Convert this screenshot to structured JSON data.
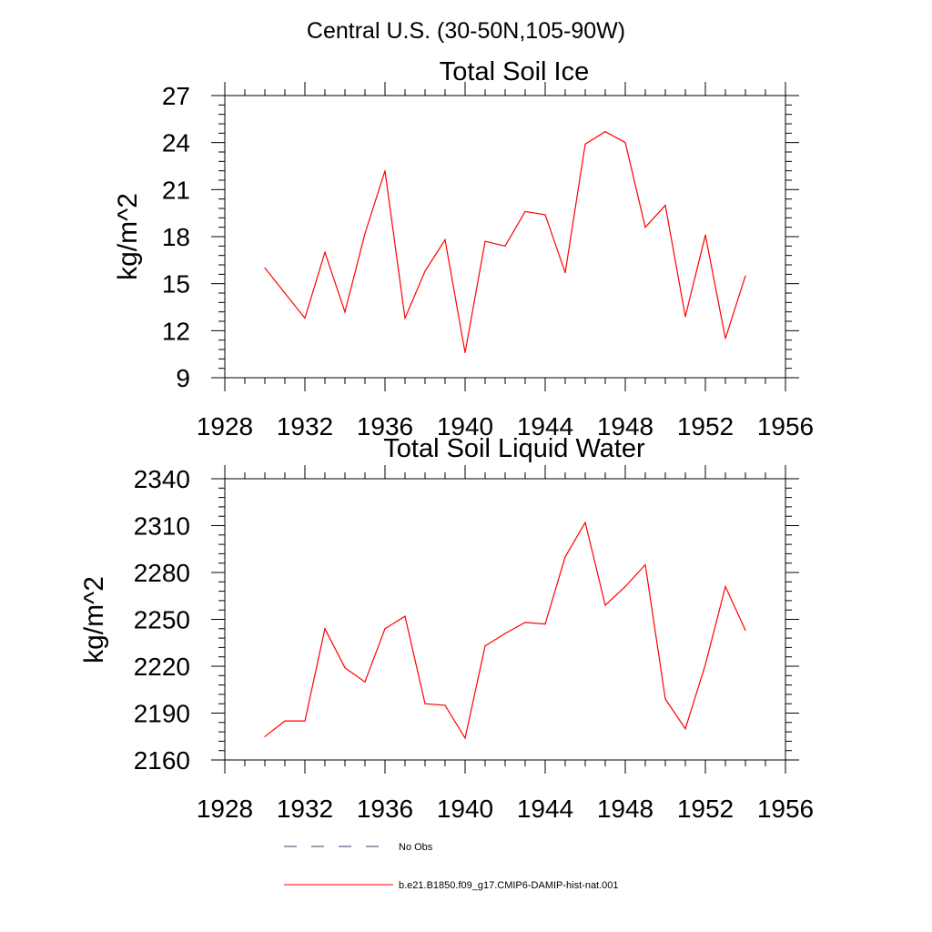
{
  "main_title": "Central U.S. (30-50N,105-90W)",
  "chart_data": [
    {
      "type": "line",
      "title": "Total Soil Ice",
      "ylabel": "kg/m^2",
      "xlabel": "",
      "xlim": [
        1928,
        1956
      ],
      "ylim": [
        9,
        27
      ],
      "x_ticks": [
        1928,
        1932,
        1936,
        1940,
        1944,
        1948,
        1952,
        1956
      ],
      "y_ticks": [
        9,
        12,
        15,
        18,
        21,
        24,
        27
      ],
      "grid": false,
      "series": [
        {
          "name": "b.e21.B1850.f09_g17.CMIP6-DAMIP-hist-nat.001",
          "color": "#ff0000",
          "x": [
            1930,
            1931,
            1932,
            1933,
            1934,
            1935,
            1936,
            1937,
            1938,
            1939,
            1940,
            1941,
            1942,
            1943,
            1944,
            1945,
            1946,
            1947,
            1948,
            1949,
            1950,
            1951,
            1952,
            1953,
            1954
          ],
          "values": [
            16.0,
            14.4,
            12.8,
            17.0,
            13.2,
            18.2,
            22.2,
            12.8,
            15.8,
            17.8,
            10.6,
            17.7,
            17.4,
            19.6,
            19.4,
            15.7,
            23.9,
            24.7,
            24.0,
            18.6,
            20.0,
            12.9,
            18.1,
            11.5,
            15.5
          ]
        }
      ]
    },
    {
      "type": "line",
      "title": "Total Soil Liquid Water",
      "ylabel": "kg/m^2",
      "xlabel": "",
      "xlim": [
        1928,
        1956
      ],
      "ylim": [
        2160,
        2340
      ],
      "x_ticks": [
        1928,
        1932,
        1936,
        1940,
        1944,
        1948,
        1952,
        1956
      ],
      "y_ticks": [
        2160,
        2190,
        2220,
        2250,
        2280,
        2310,
        2340
      ],
      "grid": false,
      "series": [
        {
          "name": "b.e21.B1850.f09_g17.CMIP6-DAMIP-hist-nat.001",
          "color": "#ff0000",
          "x": [
            1930,
            1931,
            1932,
            1933,
            1934,
            1935,
            1936,
            1937,
            1938,
            1939,
            1940,
            1941,
            1942,
            1943,
            1944,
            1945,
            1946,
            1947,
            1948,
            1949,
            1950,
            1951,
            1952,
            1953,
            1954
          ],
          "values": [
            2175,
            2185,
            2185,
            2244,
            2219,
            2210,
            2244,
            2252,
            2196,
            2195,
            2174,
            2233,
            2241,
            2248,
            2247,
            2290,
            2312,
            2259,
            2271,
            2285,
            2199,
            2180,
            2221,
            2271,
            2243
          ]
        }
      ]
    }
  ],
  "legend": {
    "placement": "bottom-center",
    "items": [
      {
        "label": "No Obs",
        "style": "dashed",
        "color": "#3a3a6a"
      },
      {
        "label": "b.e21.B1850.f09_g17.CMIP6-DAMIP-hist-nat.001",
        "style": "solid",
        "color": "#ff0000"
      }
    ]
  }
}
